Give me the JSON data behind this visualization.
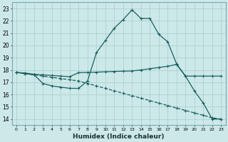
{
  "xlabel": "Humidex (Indice chaleur)",
  "bg_color": "#cce8e8",
  "grid_color": "#aacccc",
  "line_color": "#1a6060",
  "xlim": [
    -0.5,
    23.5
  ],
  "ylim": [
    13.5,
    23.5
  ],
  "xticks": [
    0,
    1,
    2,
    3,
    4,
    5,
    6,
    7,
    8,
    9,
    10,
    11,
    12,
    13,
    14,
    15,
    16,
    17,
    18,
    19,
    20,
    21,
    22,
    23
  ],
  "yticks": [
    14,
    15,
    16,
    17,
    18,
    19,
    20,
    21,
    22,
    23
  ],
  "y_upper": [
    17.8,
    17.7,
    17.6,
    16.9,
    16.7,
    16.6,
    16.5,
    16.5,
    17.1,
    19.4,
    20.4,
    21.4,
    22.1,
    22.9,
    22.2,
    22.2,
    20.9,
    20.3,
    18.5,
    17.5,
    16.3,
    15.3,
    14.0,
    14.0
  ],
  "y_mid": [
    17.8,
    17.75,
    17.65,
    17.6,
    17.55,
    17.5,
    17.45,
    17.78,
    17.8,
    17.82,
    17.85,
    17.88,
    17.9,
    17.92,
    18.0,
    18.1,
    18.2,
    18.3,
    18.45,
    17.5,
    17.5,
    17.5,
    17.5,
    17.5
  ],
  "y_lower": [
    17.8,
    17.7,
    17.6,
    17.5,
    17.4,
    17.3,
    17.2,
    17.1,
    16.9,
    16.7,
    16.5,
    16.3,
    16.1,
    15.9,
    15.7,
    15.5,
    15.3,
    15.1,
    14.9,
    14.7,
    14.5,
    14.3,
    14.1,
    14.0
  ]
}
